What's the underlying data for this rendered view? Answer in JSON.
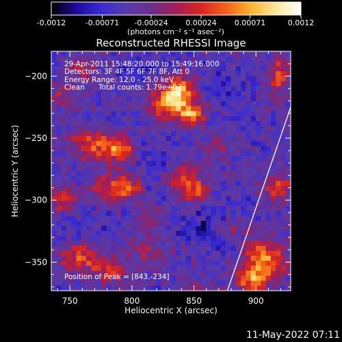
{
  "chart_data": {
    "type": "heatmap",
    "title": "Reconstructed RHESSI Image",
    "xlabel": "Heliocentric X (arcsec)",
    "ylabel": "Heliocentric Y (arcsec)",
    "xlim": [
      735,
      928
    ],
    "ylim": [
      -373,
      -180
    ],
    "x_ticks": [
      750,
      800,
      850,
      900
    ],
    "y_ticks": [
      -200,
      -250,
      -300,
      -350
    ],
    "colorbar": {
      "range": [
        -0.0012,
        0.0012
      ],
      "ticks": [
        "-0.0012",
        "-0.00071",
        "-0.00024",
        "0.00024",
        "0.00071",
        "0.0012"
      ],
      "tick_values": [
        -0.0012,
        -0.00071,
        -0.00024,
        0.00024,
        0.00071,
        0.0012
      ],
      "unit_label": "(photons cm⁻² s⁻¹ asec⁻²)",
      "colormap": [
        "#000000",
        "#1b0a9c",
        "#3a2bd0",
        "#5a3aa8",
        "#6b2f8e",
        "#a11e5a",
        "#d8261e",
        "#f2621a",
        "#f9b332",
        "#fde79a",
        "#ffffff"
      ]
    },
    "annotations": [
      "29-Apr-2011 15:48:20.000 to 15:49:16.000",
      "Detectors: 3F 4F 5F 6F 7F 8F, Att 0",
      "Energy Range: 12.0 - 25.0 keV",
      "Clean      Total counts: 1.79e+03"
    ],
    "peak_label": "Position of Peak = [843,-234]",
    "peak": [
      843,
      -234
    ],
    "limb_line": [
      [
        877,
        -373
      ],
      [
        928,
        -225
      ]
    ],
    "sources": [
      {
        "x": 838,
        "y": -213,
        "amp": 0.00125,
        "sx": 10,
        "sy": 9
      },
      {
        "x": 826,
        "y": -224,
        "amp": 0.0009,
        "sx": 9,
        "sy": 8
      },
      {
        "x": 848,
        "y": -231,
        "amp": 0.00115,
        "sx": 8,
        "sy": 6
      },
      {
        "x": 770,
        "y": -255,
        "amp": 0.00085,
        "sx": 13,
        "sy": 9
      },
      {
        "x": 790,
        "y": -261,
        "amp": 0.0008,
        "sx": 9,
        "sy": 7
      },
      {
        "x": 780,
        "y": -290,
        "amp": 0.00075,
        "sx": 10,
        "sy": 8
      },
      {
        "x": 797,
        "y": -290,
        "amp": 0.00085,
        "sx": 7,
        "sy": 6
      },
      {
        "x": 745,
        "y": -300,
        "amp": 0.0007,
        "sx": 9,
        "sy": 7
      },
      {
        "x": 843,
        "y": -282,
        "amp": 0.0008,
        "sx": 11,
        "sy": 8
      },
      {
        "x": 851,
        "y": -296,
        "amp": 0.0007,
        "sx": 8,
        "sy": 6
      },
      {
        "x": 758,
        "y": -347,
        "amp": 0.0008,
        "sx": 12,
        "sy": 9
      },
      {
        "x": 782,
        "y": -358,
        "amp": 0.0006,
        "sx": 9,
        "sy": 7
      },
      {
        "x": 812,
        "y": -342,
        "amp": 0.0004,
        "sx": 12,
        "sy": 8
      },
      {
        "x": 908,
        "y": -347,
        "amp": 0.0011,
        "sx": 11,
        "sy": 11
      },
      {
        "x": 897,
        "y": -365,
        "amp": 0.0009,
        "sx": 10,
        "sy": 8
      },
      {
        "x": 918,
        "y": -290,
        "amp": 0.00075,
        "sx": 8,
        "sy": 8
      },
      {
        "x": 918,
        "y": -200,
        "amp": 0.0008,
        "sx": 7,
        "sy": 10
      },
      {
        "x": 760,
        "y": -195,
        "amp": 0.0005,
        "sx": 9,
        "sy": 7
      },
      {
        "x": 880,
        "y": -323,
        "amp": 0.0005,
        "sx": 8,
        "sy": 6
      },
      {
        "x": 745,
        "y": -215,
        "amp": 0.0004,
        "sx": 8,
        "sy": 8
      },
      {
        "x": 870,
        "y": -258,
        "amp": 0.00035,
        "sx": 9,
        "sy": 7
      },
      {
        "x": 815,
        "y": -313,
        "amp": 0.0003,
        "sx": 9,
        "sy": 7
      },
      {
        "x": 853,
        "y": -371,
        "amp": 0.0003,
        "sx": 10,
        "sy": 5
      },
      {
        "x": 810,
        "y": -195,
        "amp": -0.0002,
        "sx": 14,
        "sy": 10
      },
      {
        "x": 860,
        "y": -320,
        "amp": -0.0003,
        "sx": 18,
        "sy": 13
      },
      {
        "x": 820,
        "y": -270,
        "amp": -0.0002,
        "sx": 14,
        "sy": 12
      },
      {
        "x": 875,
        "y": -210,
        "amp": -0.0002,
        "sx": 16,
        "sy": 14
      },
      {
        "x": 760,
        "y": -320,
        "amp": -0.0002,
        "sx": 14,
        "sy": 12
      }
    ]
  },
  "footer_timestamp": "11-May-2022 07:11"
}
